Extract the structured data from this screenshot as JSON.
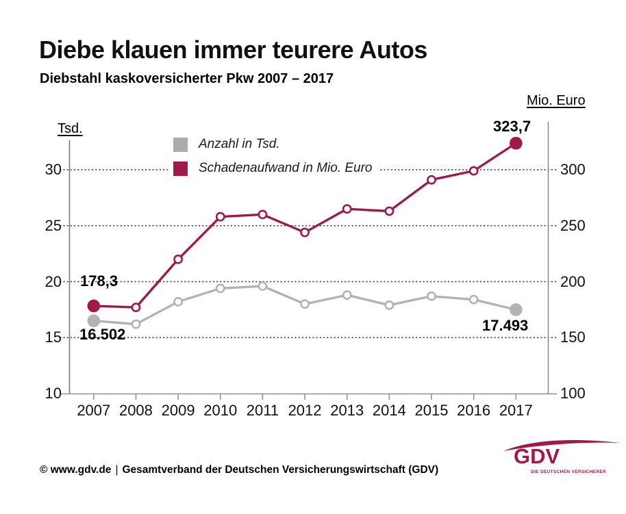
{
  "header": {
    "title": "Diebe klauen immer teurere Autos",
    "subtitle": "Diebstahl kaskoversicherter Pkw 2007 – 2017"
  },
  "chart_data": {
    "type": "line",
    "title": "Diebstahl kaskoversicherter Pkw 2007 – 2017",
    "categories": [
      "2007",
      "2008",
      "2009",
      "2010",
      "2011",
      "2012",
      "2013",
      "2014",
      "2015",
      "2016",
      "2017"
    ],
    "series": [
      {
        "name": "Anzahl in Tsd.",
        "axis": "left",
        "color": "#b3b3b3",
        "values": [
          16.502,
          16.2,
          18.2,
          19.4,
          19.6,
          18.0,
          18.8,
          17.9,
          18.7,
          18.4,
          17.493
        ]
      },
      {
        "name": "Schadenaufwand in Mio. Euro",
        "axis": "right",
        "color": "#a0194a",
        "values": [
          178.3,
          177,
          220,
          258,
          260,
          244,
          265,
          263,
          291,
          299,
          323.7
        ]
      }
    ],
    "left_axis": {
      "label": "Tsd.",
      "ticks": [
        "30",
        "25",
        "20",
        "15",
        "10"
      ],
      "range": [
        10,
        30
      ]
    },
    "right_axis": {
      "label": "Mio. Euro",
      "ticks": [
        "300",
        "250",
        "200",
        "150",
        "100"
      ],
      "range": [
        100,
        300
      ]
    },
    "grid": "dotted horizontal gridlines at shared tick levels",
    "legend_position": "top-left inside plot",
    "annotations": {
      "red_start": "178,3",
      "red_end": "323,7",
      "gray_start": "16.502",
      "gray_end": "17.493"
    }
  },
  "legend": {
    "items": [
      {
        "label": "Anzahl in Tsd.",
        "color": "#ababab"
      },
      {
        "label": "Schadenaufwand in Mio. Euro",
        "color": "#a0194a"
      }
    ]
  },
  "footer": {
    "copyright": "© www.gdv.de",
    "separator": "|",
    "org": "Gesamtverband der Deutschen Versicherungswirtschaft (GDV)"
  },
  "logo": {
    "text": "GDV",
    "tagline": "DIE DEUTSCHEN VERSICHERER",
    "color": "#a0194a"
  },
  "colors": {
    "brand_red": "#a0194a",
    "line_gray": "#b3b3b3",
    "axis_gray": "#8f8f8f",
    "grid_dot": "#3a3a3a"
  }
}
